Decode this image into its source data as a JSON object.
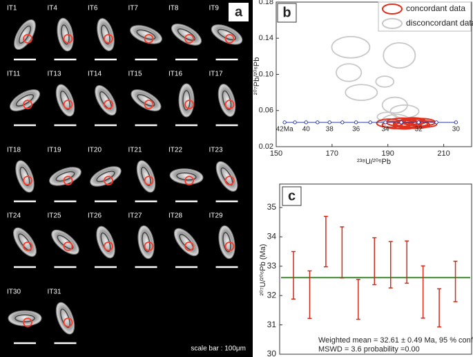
{
  "panel_a": {
    "panel_label": "a",
    "grains": [
      "IT1",
      "IT4",
      "IT6",
      "IT7",
      "IT8",
      "IT9",
      "IT11",
      "IT13",
      "IT14",
      "IT15",
      "IT16",
      "IT17",
      "IT18",
      "IT19",
      "IT20",
      "IT21",
      "IT22",
      "IT23",
      "IT24",
      "IT25",
      "IT26",
      "IT27",
      "IT28",
      "IT29",
      "IT30",
      "IT31"
    ],
    "scale_note": "scale bar : 100μm"
  },
  "chart_data": [
    {
      "type": "scatter",
      "panel_label": "b",
      "x_label": "²³⁸U/²⁰⁶Pb",
      "y_label": "²⁰⁷Pb/²⁰⁶Pb",
      "xlim": [
        150,
        220
      ],
      "ylim": [
        0.02,
        0.18
      ],
      "xticks": [
        150,
        170,
        190,
        210
      ],
      "yticks": [
        0.02,
        0.06,
        {
          "value": 0.1,
          "label": "0.10"
        },
        0.14,
        0.18
      ],
      "series": [
        {
          "name": "concordant data",
          "color": "#e0301e",
          "x": [
            190.5,
            193,
            195,
            197,
            198.5,
            200,
            201.5,
            203,
            196,
            199
          ],
          "values": [
            0.046,
            0.044,
            0.047,
            0.045,
            0.046,
            0.044,
            0.047,
            0.045,
            0.043,
            0.048
          ],
          "rx": [
            4.5,
            5,
            5.5,
            5,
            6,
            5,
            5.5,
            4.5,
            4,
            4.5
          ],
          "ry": [
            0.0045,
            0.004,
            0.0045,
            0.004,
            0.0045,
            0.0038,
            0.0042,
            0.0035,
            0.0035,
            0.004
          ]
        },
        {
          "name": "disconcordant data",
          "color": "#c8c8c8",
          "x": [
            176.7,
            194.1,
            176,
            180.5,
            188.9,
            192.5,
            196,
            193,
            189.6
          ],
          "values": [
            0.13,
            0.121,
            0.102,
            0.08,
            0.092,
            0.066,
            0.059,
            0.048,
            0.053
          ],
          "rx": [
            6.8,
            5.7,
            4.5,
            5.7,
            3.2,
            4.5,
            5.1,
            5.1,
            3.4
          ],
          "ry": [
            0.0118,
            0.0139,
            0.0097,
            0.0087,
            0.006,
            0.0087,
            0.007,
            0.0076,
            0.005
          ]
        }
      ],
      "concordia": {
        "color": "#303c9a",
        "x": [
          153.0,
          156.7,
          160.7,
          164.8,
          169.1,
          173.7,
          178.6,
          183.7,
          189.1,
          194.8,
          201.0,
          207.4,
          214.4
        ],
        "values": [
          0.0469,
          0.0469,
          0.0469,
          0.0469,
          0.0469,
          0.0469,
          0.0469,
          0.0469,
          0.0469,
          0.0469,
          0.0469,
          0.0469,
          0.0469
        ],
        "age_labels": [
          "42Ma",
          null,
          "40",
          null,
          "38",
          null,
          "36",
          null,
          "34",
          null,
          "32",
          null,
          "30"
        ]
      }
    },
    {
      "type": "errorbar",
      "panel_label": "c",
      "y_label": "²⁰⁷U/²⁰⁶Pb (Ma)",
      "ylim": [
        30,
        35.8
      ],
      "yticks": [
        30,
        31,
        32,
        33,
        34,
        35
      ],
      "color": "#d22a1a",
      "values": [
        32.69,
        32.03,
        33.84,
        33.47,
        31.87,
        33.17,
        33.05,
        33.14,
        32.12,
        31.58,
        32.48
      ],
      "errors": [
        0.81,
        0.81,
        0.86,
        0.87,
        0.68,
        0.8,
        0.79,
        0.72,
        0.89,
        0.65,
        0.69
      ],
      "mean": 32.61,
      "mean_color": "#3a8a2a",
      "annotations": [
        "Weighted mean = 32.61 ± 0.49 Ma, 95 % conf.",
        "MSWD = 3.6 probability =0.00"
      ]
    }
  ]
}
